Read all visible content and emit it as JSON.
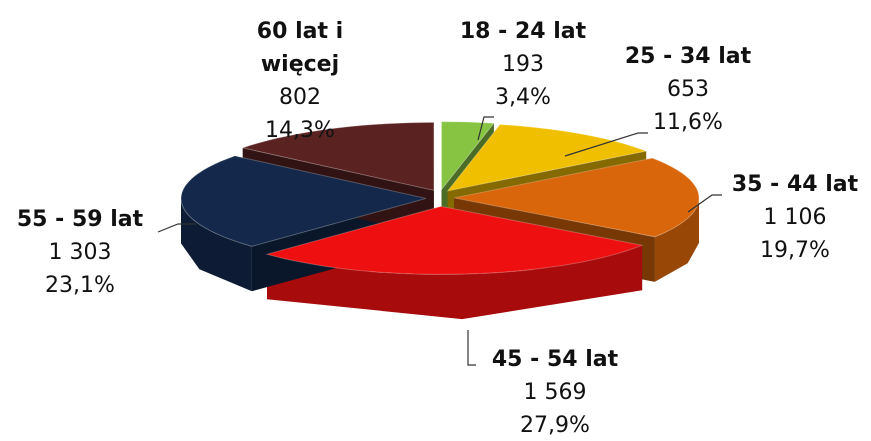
{
  "chart_data": {
    "type": "pie3d",
    "categories": [
      "18 - 24 lat",
      "25 - 34 lat",
      "35 - 44 lat",
      "45 - 54 lat",
      "55 - 59 lat",
      "60 lat i więcej"
    ],
    "values": [
      193,
      653,
      1106,
      1569,
      1303,
      802
    ],
    "value_labels": [
      "193",
      "653",
      "1 106",
      "1 569",
      "1 303",
      "802"
    ],
    "percentages": [
      3.4,
      11.6,
      19.7,
      27.9,
      23.1,
      14.3
    ],
    "percentage_labels": [
      "3,4%",
      "11,6%",
      "19,7%",
      "27,9%",
      "23,1%",
      "14,3%"
    ],
    "colors": [
      "#86c442",
      "#f0c000",
      "#d9660a",
      "#ee1010",
      "#13284a",
      "#5b2222"
    ]
  }
}
